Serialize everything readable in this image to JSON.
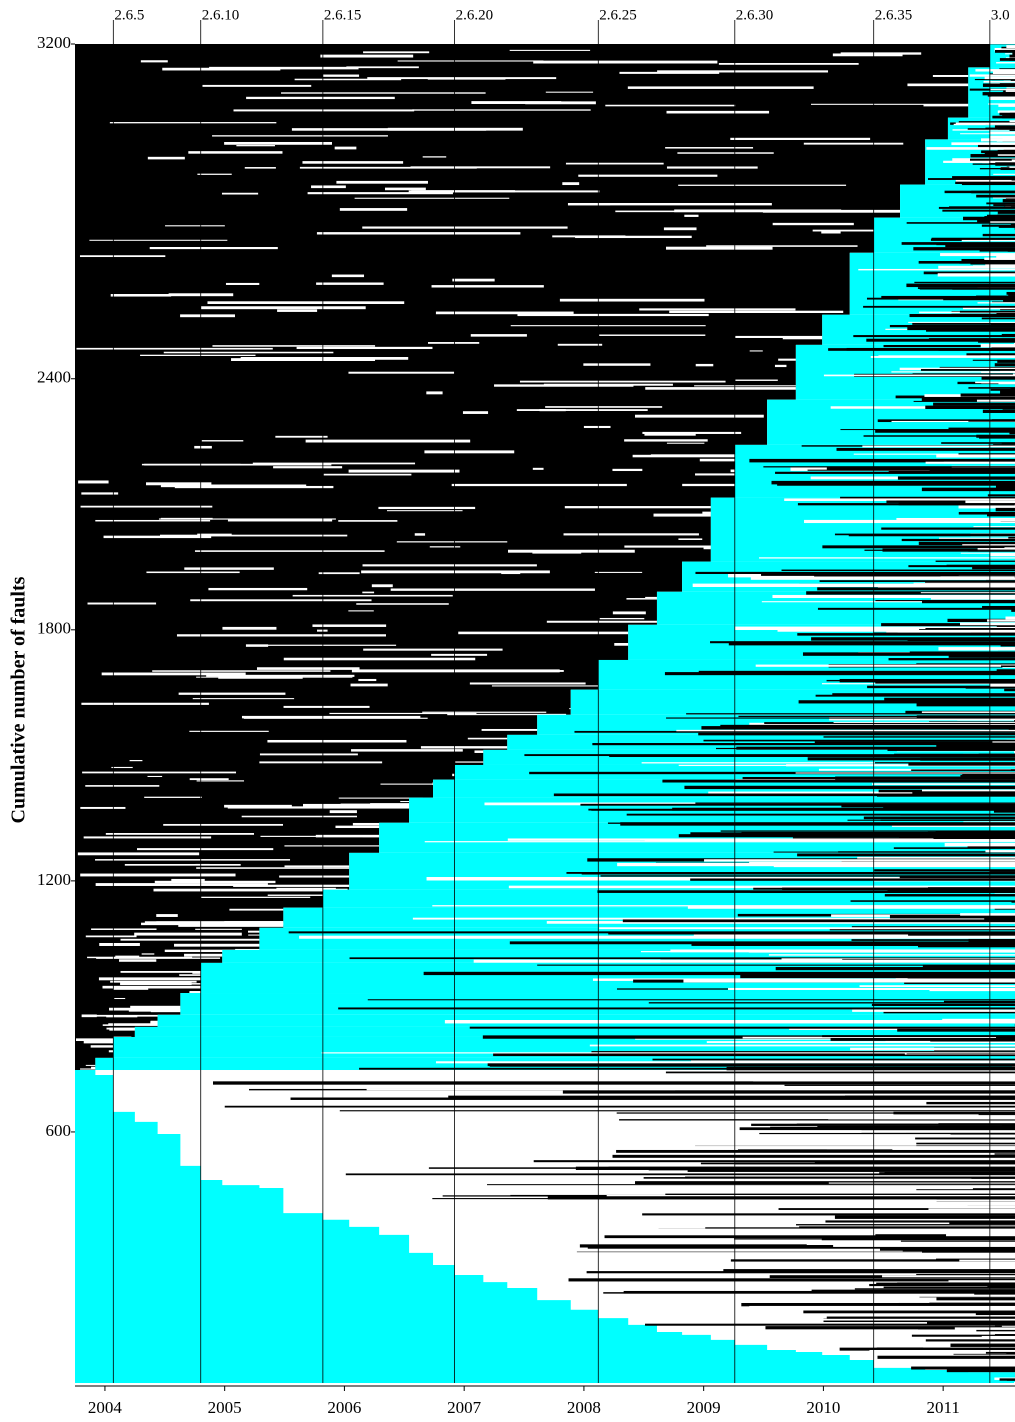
{
  "chart_data": {
    "type": "step",
    "ylabel": "Cumulative number of faults",
    "x": [
      2003.75,
      2003.92,
      2004.07,
      2004.25,
      2004.44,
      2004.63,
      2004.8,
      2004.98,
      2005.29,
      2005.49,
      2005.82,
      2006.04,
      2006.29,
      2006.54,
      2006.74,
      2006.92,
      2007.16,
      2007.36,
      2007.61,
      2007.89,
      2008.12,
      2008.37,
      2008.61,
      2008.82,
      2009.06,
      2009.26,
      2009.53,
      2009.77,
      2009.99,
      2010.22,
      2010.42,
      2010.64,
      2010.85,
      2011.04,
      2011.21,
      2011.39
    ],
    "series": [
      {
        "color": "#00ffff",
        "values": [
          748,
          777,
          827,
          851,
          880,
          932,
          1004,
          1035,
          1088,
          1136,
          1179,
          1267,
          1339,
          1399,
          1442,
          1477,
          1513,
          1549,
          1597,
          1657,
          1728,
          1812,
          1891,
          1963,
          2116,
          2242,
          2350,
          2481,
          2553,
          2701,
          2785,
          2864,
          2972,
          3024,
          3144,
          3199
        ]
      },
      {
        "color": "#00ffff",
        "values": [
          748,
          736,
          648,
          624,
          595,
          519,
          485,
          473,
          466,
          406,
          390,
          373,
          354,
          311,
          282,
          258,
          241,
          227,
          198,
          175,
          155,
          139,
          122,
          115,
          103,
          91,
          79,
          74,
          67,
          55,
          36,
          36,
          31,
          31,
          26,
          26
        ]
      }
    ],
    "versions": [
      {
        "label": "2.6.5",
        "x": 2004.07
      },
      {
        "label": "2.6.10",
        "x": 2004.8
      },
      {
        "label": "2.6.15",
        "x": 2005.82
      },
      {
        "label": "2.6.20",
        "x": 2006.92
      },
      {
        "label": "2.6.25",
        "x": 2008.12
      },
      {
        "label": "2.6.30",
        "x": 2009.26
      },
      {
        "label": "2.6.35",
        "x": 2010.42
      },
      {
        "label": "3.0",
        "x": 2011.39
      }
    ],
    "xlim": [
      2003.75,
      2011.6
    ],
    "xticks": [
      2004,
      2005,
      2006,
      2007,
      2008,
      2009,
      2010,
      2011
    ],
    "ylim": [
      0,
      3200
    ],
    "yticks": [
      600,
      1200,
      1800,
      2400,
      3200
    ],
    "background_color": "#000000"
  }
}
